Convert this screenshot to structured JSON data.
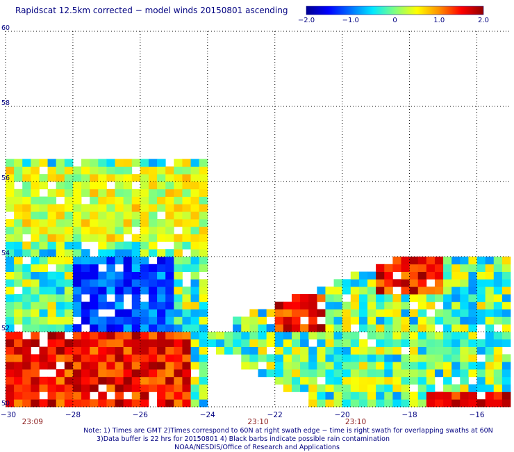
{
  "title": "Rapidscat 12.5km corrected − model winds 20150801 ascending",
  "colorbar": {
    "min": -2.0,
    "max": 2.0,
    "ticks": [
      "−2.0",
      "−1.0",
      "0",
      "1.0",
      "2.0"
    ],
    "tick_values": [
      -2.0,
      -1.0,
      0,
      1.0,
      2.0
    ],
    "colors": [
      "#000090",
      "#0000ff",
      "#0070ff",
      "#00e8ff",
      "#80ff80",
      "#ffff00",
      "#ff9000",
      "#ff0000",
      "#900000"
    ]
  },
  "chart_data": {
    "type": "heatmap",
    "title": "Rapidscat 12.5km corrected − model winds 20150801 ascending",
    "xlim": [
      -30,
      -15
    ],
    "ylim": [
      50,
      60
    ],
    "grid": true,
    "x_ticks": [
      "−30",
      "−28",
      "−26",
      "−24",
      "−22",
      "−20",
      "−18",
      "−16"
    ],
    "x_tick_values": [
      -30,
      -28,
      -26,
      -24,
      -22,
      -20,
      -18,
      -16
    ],
    "y_ticks": [
      "50",
      "52",
      "54",
      "56",
      "58",
      "60"
    ],
    "y_tick_values": [
      50,
      52,
      54,
      56,
      58,
      60
    ],
    "time_labels": [
      {
        "text": "23:09",
        "lon": -29.2
      },
      {
        "text": "23:10",
        "lon": -22.5
      },
      {
        "text": "23:10",
        "lon": -19.6
      }
    ],
    "swath_1": {
      "lon_range": [
        -30,
        -24
      ],
      "lat_range": [
        50,
        56.5
      ]
    },
    "swath_2": {
      "lon_range": [
        -24,
        -15
      ],
      "lat_range": [
        50,
        54
      ]
    },
    "features": [
      {
        "region": "swath 1 north",
        "lon_range": [
          -30,
          -24
        ],
        "lat_range": [
          54.5,
          56.5
        ],
        "value": 0.5
      },
      {
        "region": "swath 1 center",
        "lon_range": [
          -28,
          -25
        ],
        "lat_range": [
          52,
          54
        ],
        "value": -1.5
      },
      {
        "region": "swath 1 south",
        "lon_range": [
          -30,
          -24.5
        ],
        "lat_range": [
          50,
          52
        ],
        "value": 2.0
      },
      {
        "region": "swath 2 north",
        "lon_range": [
          -19,
          -17
        ],
        "lat_range": [
          53,
          54
        ],
        "value": 2.0
      },
      {
        "region": "swath 2 west",
        "lon_range": [
          -22,
          -20.5
        ],
        "lat_range": [
          52,
          53
        ],
        "value": 2.0
      },
      {
        "region": "swath 2 south",
        "lon_range": [
          -17.5,
          -15
        ],
        "lat_range": [
          50,
          50.5
        ],
        "value": 2.0
      }
    ]
  },
  "notes": [
    "Note: 1) Times are GMT 2)Times correspond to 60N at right swath edge − time is right swath for overlapping swaths at 60N",
    "3)Data buffer is 22 hrs for 20150801 4) Black barbs indicate possible rain contamination",
    "NOAA/NESDIS/Office of Research and Applications"
  ]
}
